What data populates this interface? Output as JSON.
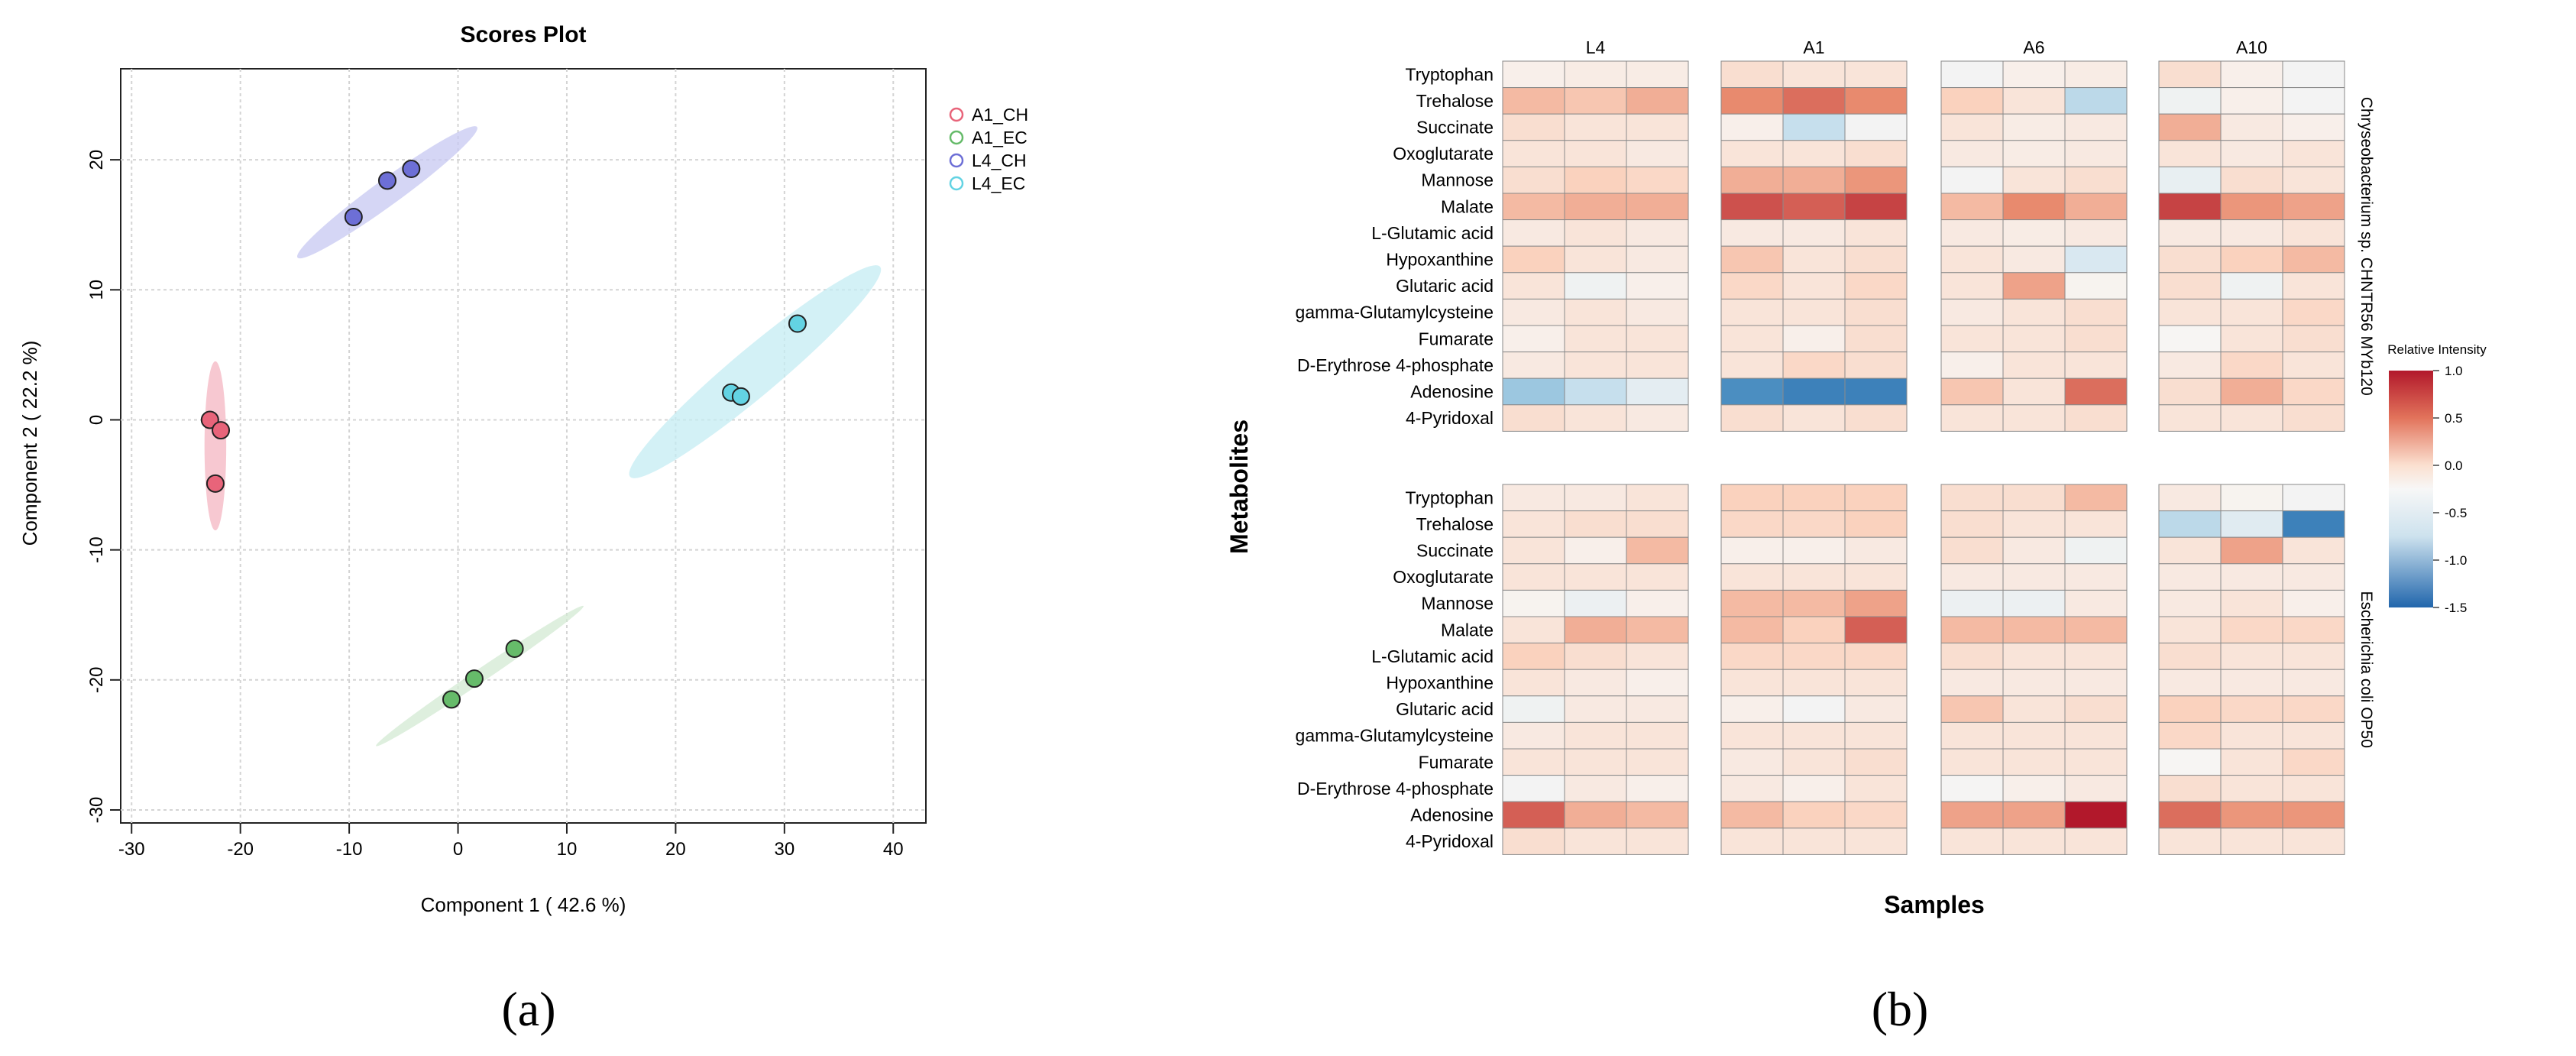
{
  "panel_labels": {
    "a": "(a)",
    "b": "(b)"
  },
  "chart_data": [
    {
      "type": "scatter",
      "title": "Scores Plot",
      "xlabel": "Component 1 ( 42.6 %)",
      "ylabel": "Component 2 ( 22.2 %)",
      "xlim": [
        -31,
        43
      ],
      "ylim": [
        -31,
        27
      ],
      "xticks": [
        -30,
        -20,
        -10,
        0,
        10,
        20,
        30,
        40
      ],
      "yticks": [
        -30,
        -20,
        -10,
        0,
        10,
        20
      ],
      "xtick_labels": [
        "-30",
        "-20",
        "-10",
        "0",
        "10",
        "20",
        "30",
        "40"
      ],
      "ytick_labels": [
        "-30",
        "-20",
        "-10",
        "0",
        "10",
        "20"
      ],
      "grid": true,
      "legend_position": "top-right outside",
      "series": [
        {
          "name": "A1_CH",
          "color": "#e8647a",
          "ellipse_color": "#f4b6c2",
          "points": [
            [
              -22.8,
              0.0
            ],
            [
              -21.8,
              -0.8
            ],
            [
              -22.3,
              -4.9
            ]
          ],
          "ellipse": {
            "cx": -22.3,
            "cy": -2.0,
            "rx": 1.0,
            "ry": 6.5,
            "angle": 0
          }
        },
        {
          "name": "A1_EC",
          "color": "#66bb6a",
          "ellipse_color": "#d3ead3",
          "points": [
            [
              -0.6,
              -21.5
            ],
            [
              1.5,
              -19.9
            ],
            [
              5.2,
              -17.6
            ]
          ],
          "ellipse": {
            "cx": 2.0,
            "cy": -19.7,
            "rx": 11.5,
            "ry": 0.5,
            "angle": 34
          }
        },
        {
          "name": "L4_CH",
          "color": "#6d6fd6",
          "ellipse_color": "#c7c8f1",
          "points": [
            [
              -9.6,
              15.6
            ],
            [
              -6.5,
              18.4
            ],
            [
              -4.3,
              19.3
            ]
          ],
          "ellipse": {
            "cx": -6.5,
            "cy": 17.5,
            "rx": 10.2,
            "ry": 1.0,
            "angle": 36
          }
        },
        {
          "name": "L4_EC",
          "color": "#63d3e3",
          "ellipse_color": "#c4ecf3",
          "points": [
            [
              25.1,
              2.1
            ],
            [
              26.0,
              1.8
            ],
            [
              31.2,
              7.4
            ]
          ],
          "ellipse": {
            "cx": 27.3,
            "cy": 3.7,
            "rx": 15.0,
            "ry": 1.8,
            "angle": 40
          }
        }
      ]
    },
    {
      "type": "heatmap",
      "xlabel": "Samples",
      "ylabel": "Metabolites",
      "column_groups": [
        "L4",
        "A1",
        "A6",
        "A10"
      ],
      "replicates_per_group": 3,
      "row_groups": [
        "Chryseobacterium sp. CHNTR56 MYb120",
        "Escherichia coli OP50"
      ],
      "metabolites": [
        "Tryptophan",
        "Trehalose",
        "Succinate",
        "Oxoglutarate",
        "Mannose",
        "Malate",
        "L-Glutamic acid",
        "Hypoxanthine",
        "Glutaric acid",
        "gamma-Glutamylcysteine",
        "Fumarate",
        "D-Erythrose 4-phosphate",
        "Adenosine",
        "4-Pyridoxal"
      ],
      "legend": {
        "title": "Relative Intensity",
        "ticks": [
          1.0,
          0.5,
          0.0,
          -0.5,
          -1.0,
          -1.5
        ],
        "tick_labels": [
          "1.0",
          "0.5",
          "0.0",
          "-0.5",
          "-1.0",
          "-1.5"
        ],
        "min": -1.5,
        "max": 1.0
      },
      "values": [
        [
          [
            0.05,
            0.08,
            0.08,
            0.2,
            0.15,
            0.15,
            -0.05,
            0.05,
            0.08,
            0.2,
            0.05,
            -0.05
          ],
          [
            0.4,
            0.35,
            0.45,
            0.6,
            0.7,
            0.6,
            0.3,
            0.15,
            -0.6,
            -0.1,
            0.05,
            -0.05
          ],
          [
            0.2,
            0.15,
            0.15,
            0.05,
            -0.55,
            -0.05,
            0.15,
            0.08,
            0.1,
            0.45,
            0.1,
            0.05
          ],
          [
            0.15,
            0.15,
            0.1,
            0.15,
            0.15,
            0.2,
            0.1,
            0.08,
            0.1,
            0.15,
            0.1,
            0.15
          ],
          [
            0.2,
            0.3,
            0.25,
            0.45,
            0.45,
            0.55,
            -0.05,
            0.15,
            0.2,
            -0.2,
            0.2,
            0.15
          ],
          [
            0.4,
            0.45,
            0.45,
            0.8,
            0.75,
            0.85,
            0.4,
            0.6,
            0.45,
            0.85,
            0.55,
            0.5
          ],
          [
            0.1,
            0.15,
            0.1,
            0.1,
            0.1,
            0.15,
            0.1,
            0.08,
            0.1,
            0.1,
            0.1,
            0.15
          ],
          [
            0.3,
            0.15,
            0.1,
            0.35,
            0.15,
            0.2,
            0.15,
            0.1,
            -0.4,
            0.2,
            0.3,
            0.4
          ],
          [
            0.15,
            -0.1,
            0.05,
            0.25,
            0.15,
            0.25,
            0.15,
            0.5,
            0.02,
            0.2,
            -0.1,
            0.15
          ],
          [
            0.1,
            0.15,
            0.1,
            0.15,
            0.15,
            0.2,
            0.1,
            0.15,
            0.2,
            0.15,
            0.15,
            0.25
          ],
          [
            0.05,
            0.15,
            0.15,
            0.15,
            0.05,
            0.2,
            0.15,
            0.15,
            0.2,
            0.0,
            0.15,
            0.2
          ],
          [
            0.1,
            0.15,
            0.15,
            0.15,
            0.25,
            0.2,
            0.05,
            0.15,
            0.15,
            0.1,
            0.25,
            0.15
          ],
          [
            -0.75,
            -0.55,
            -0.25,
            -1.2,
            -1.3,
            -1.3,
            0.35,
            0.15,
            0.7,
            0.2,
            0.45,
            0.25
          ],
          [
            0.2,
            0.15,
            0.1,
            0.2,
            0.15,
            0.2,
            0.15,
            0.15,
            0.2,
            0.15,
            0.15,
            0.2
          ]
        ],
        [
          [
            0.1,
            0.1,
            0.15,
            0.3,
            0.3,
            0.3,
            0.2,
            0.2,
            0.4,
            0.1,
            0.02,
            -0.05
          ],
          [
            0.15,
            0.2,
            0.2,
            0.25,
            0.25,
            0.3,
            0.2,
            0.15,
            0.15,
            -0.6,
            -0.3,
            -1.3
          ],
          [
            0.15,
            0.05,
            0.4,
            0.05,
            0.05,
            0.1,
            0.2,
            0.1,
            -0.1,
            0.15,
            0.5,
            0.15
          ],
          [
            0.15,
            0.15,
            0.15,
            0.15,
            0.15,
            0.15,
            0.1,
            0.1,
            0.1,
            0.1,
            0.1,
            0.1
          ],
          [
            0.02,
            -0.15,
            0.05,
            0.4,
            0.4,
            0.5,
            -0.15,
            -0.15,
            0.1,
            0.1,
            0.15,
            0.05
          ],
          [
            0.15,
            0.45,
            0.4,
            0.4,
            0.3,
            0.75,
            0.4,
            0.4,
            0.4,
            0.15,
            0.25,
            0.25
          ],
          [
            0.3,
            0.2,
            0.15,
            0.25,
            0.25,
            0.25,
            0.2,
            0.15,
            0.15,
            0.2,
            0.15,
            0.15
          ],
          [
            0.15,
            0.1,
            0.05,
            0.15,
            0.15,
            0.15,
            0.1,
            0.1,
            0.1,
            0.1,
            0.1,
            0.1
          ],
          [
            -0.1,
            0.1,
            0.1,
            0.05,
            -0.05,
            0.1,
            0.35,
            0.15,
            0.2,
            0.3,
            0.25,
            0.25
          ],
          [
            0.1,
            0.15,
            0.15,
            0.15,
            0.15,
            0.15,
            0.15,
            0.15,
            0.15,
            0.25,
            0.15,
            0.15
          ],
          [
            0.15,
            0.15,
            0.15,
            0.1,
            0.15,
            0.2,
            0.15,
            0.15,
            0.15,
            0.0,
            0.15,
            0.25
          ],
          [
            -0.05,
            0.1,
            0.05,
            0.1,
            0.05,
            0.15,
            -0.02,
            0.05,
            0.1,
            0.2,
            0.15,
            0.15
          ],
          [
            0.75,
            0.45,
            0.4,
            0.4,
            0.3,
            0.25,
            0.5,
            0.5,
            1.0,
            0.7,
            0.55,
            0.55
          ],
          [
            0.2,
            0.15,
            0.15,
            0.15,
            0.15,
            0.15,
            0.15,
            0.15,
            0.15,
            0.15,
            0.15,
            0.15
          ]
        ]
      ]
    }
  ]
}
